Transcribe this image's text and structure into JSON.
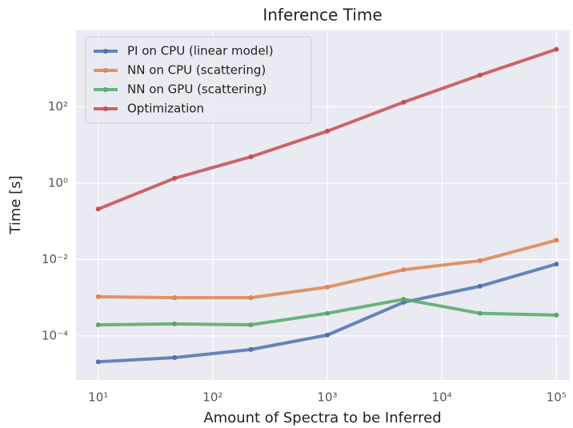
{
  "chart_data": {
    "type": "line",
    "title": "Inference Time",
    "x_label": "Amount of Spectra to be Inferred",
    "y_label": "Time [s]",
    "x": [
      10,
      46.4,
      215.4,
      1000,
      4641.6,
      21544,
      100000
    ],
    "series": [
      {
        "name": "PI on CPU (linear model)",
        "color": "#4c72b0",
        "values": [
          2.1e-05,
          2.7e-05,
          4.4e-05,
          0.000105,
          0.00076,
          0.002,
          0.0076
        ]
      },
      {
        "name": "NN on CPU (scattering)",
        "color": "#dd8452",
        "values": [
          0.00106,
          0.001,
          0.001,
          0.0019,
          0.0054,
          0.0093,
          0.032
        ]
      },
      {
        "name": "NN on GPU (scattering)",
        "color": "#55a868",
        "values": [
          0.000195,
          0.000206,
          0.000195,
          0.00039,
          0.00091,
          0.00039,
          0.00035
        ]
      },
      {
        "name": "Optimization",
        "color": "#c44e52",
        "values": [
          0.21,
          1.34,
          4.9,
          23,
          132,
          676,
          3200
        ]
      }
    ],
    "xlog": true,
    "ylog": true,
    "xlim": [
      6.4,
      131000
    ],
    "ylim": [
      7e-06,
      10000
    ],
    "xticks": [
      {
        "value": 10,
        "label": "10¹"
      },
      {
        "value": 100,
        "label": "10²"
      },
      {
        "value": 1000,
        "label": "10³"
      },
      {
        "value": 10000,
        "label": "10⁴"
      },
      {
        "value": 100000,
        "label": "10⁵"
      }
    ],
    "yticks": [
      {
        "value": 0.0001,
        "label": "10⁻⁴"
      },
      {
        "value": 0.01,
        "label": "10⁻²"
      },
      {
        "value": 1,
        "label": "10⁰"
      },
      {
        "value": 100,
        "label": "10²"
      }
    ],
    "grid": true,
    "legend": "upper left"
  }
}
